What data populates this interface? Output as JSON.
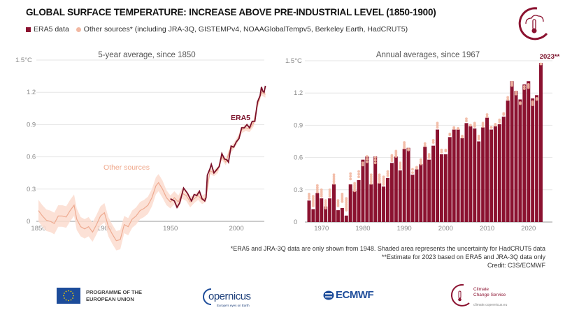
{
  "title": "GLOBAL SURFACE TEMPERATURE: INCREASE ABOVE PRE-INDUSTRIAL LEVEL (1850-1900)",
  "legend": {
    "era5": "ERA5 data",
    "others": "Other sources* (including JRA-3Q, GISTEMPv4, NOAAGlobalTempv5, Berkeley Earth, HadCRUT5)"
  },
  "colors": {
    "era5": "#8b1230",
    "others": "#f2b8a2",
    "band": "#fbdccf"
  },
  "chart_data": [
    {
      "type": "line",
      "title": "5-year average, since 1850",
      "ylim": [
        -0.2,
        1.5
      ],
      "xlim": [
        1847,
        2023
      ],
      "y_ticks": [
        "0",
        "0.3",
        "0.6",
        "0.9",
        "1.2",
        "1.5°C"
      ],
      "y_tick_values": [
        0,
        0.3,
        0.6,
        0.9,
        1.2,
        1.5
      ],
      "x_ticks": [
        "1850",
        "1900",
        "1950",
        "2000"
      ],
      "x_tick_values": [
        1850,
        1900,
        1950,
        2000
      ],
      "grid": true,
      "annotations": {
        "era5": "ERA5",
        "others": "Other sources"
      },
      "series": [
        {
          "name": "ERA5",
          "x": [
            1950,
            1953,
            1955,
            1957,
            1960,
            1963,
            1965,
            1966,
            1968,
            1970,
            1972,
            1974,
            1976,
            1977,
            1978,
            1980,
            1981,
            1983,
            1985,
            1987,
            1989,
            1991,
            1993,
            1994,
            1996,
            1998,
            2000,
            2002,
            2004,
            2006,
            2008,
            2010,
            2012,
            2014,
            2016,
            2018,
            2019,
            2020,
            2021,
            2022
          ],
          "y": [
            0.21,
            0.19,
            0.13,
            0.17,
            0.31,
            0.26,
            0.21,
            0.19,
            0.25,
            0.24,
            0.28,
            0.21,
            0.19,
            0.22,
            0.43,
            0.49,
            0.53,
            0.45,
            0.48,
            0.51,
            0.63,
            0.58,
            0.57,
            0.55,
            0.7,
            0.69,
            0.74,
            0.77,
            0.87,
            0.87,
            0.9,
            0.87,
            0.93,
            0.93,
            1.11,
            1.17,
            1.25,
            1.21,
            1.2,
            1.26
          ]
        },
        {
          "name": "Other sources",
          "x": [
            1850,
            1853,
            1856,
            1859,
            1862,
            1865,
            1868,
            1871,
            1874,
            1877,
            1879,
            1882,
            1885,
            1888,
            1891,
            1894,
            1897,
            1900,
            1903,
            1906,
            1909,
            1912,
            1915,
            1918,
            1921,
            1924,
            1927,
            1930,
            1933,
            1936,
            1939,
            1941,
            1944,
            1947,
            1950,
            1953,
            1956,
            1959,
            1962,
            1965,
            1968,
            1971,
            1974,
            1977,
            1980,
            1983,
            1986,
            1989,
            1992,
            1995,
            1998,
            2001,
            2004,
            2007,
            2010,
            2013,
            2016,
            2019,
            2022
          ],
          "y": [
            0.1,
            0.05,
            0.01,
            0.0,
            -0.02,
            0.05,
            0.05,
            0.04,
            0.1,
            0.15,
            0.02,
            -0.05,
            -0.07,
            -0.05,
            -0.1,
            -0.03,
            0.05,
            0.08,
            -0.05,
            -0.12,
            -0.18,
            -0.17,
            -0.03,
            -0.05,
            0.02,
            0.05,
            0.1,
            0.12,
            0.15,
            0.22,
            0.33,
            0.36,
            0.3,
            0.22,
            0.18,
            0.22,
            0.18,
            0.26,
            0.24,
            0.18,
            0.21,
            0.24,
            0.2,
            0.22,
            0.47,
            0.45,
            0.48,
            0.6,
            0.55,
            0.66,
            0.7,
            0.76,
            0.85,
            0.87,
            0.86,
            0.91,
            1.08,
            1.2,
            1.18
          ],
          "uncertainty": [
            0.1,
            0.1,
            0.1,
            0.1,
            0.1,
            0.1,
            0.1,
            0.1,
            0.1,
            0.1,
            0.1,
            0.09,
            0.09,
            0.09,
            0.09,
            0.09,
            0.09,
            0.09,
            0.09,
            0.09,
            0.09,
            0.09,
            0.08,
            0.08,
            0.08,
            0.08,
            0.08,
            0.08,
            0.08,
            0.08,
            0.08,
            0.08,
            0.08,
            0.07,
            0.06,
            0.06,
            0.06,
            0.05,
            0.05,
            0.05,
            0.04,
            0.04,
            0.04,
            0.04,
            0.03,
            0.03,
            0.03,
            0.03,
            0.03,
            0.03,
            0.03,
            0.03,
            0.03,
            0.03,
            0.03,
            0.03,
            0.03,
            0.03,
            0.03
          ]
        }
      ]
    },
    {
      "type": "bar",
      "title": "Annual averages, since 1967",
      "ylim": [
        0,
        1.5
      ],
      "y_ticks": [
        "0",
        "0.3",
        "0.6",
        "0.9",
        "1.2",
        "1.5°C"
      ],
      "y_tick_values": [
        0,
        0.3,
        0.6,
        0.9,
        1.2,
        1.5
      ],
      "x_ticks": [
        "1970",
        "1980",
        "1990",
        "2000",
        "2010",
        "2020"
      ],
      "x_tick_values": [
        1970,
        1980,
        1990,
        2000,
        2010,
        2020
      ],
      "grid": true,
      "annotation": "2023**",
      "x": [
        1967,
        1968,
        1969,
        1970,
        1971,
        1972,
        1973,
        1974,
        1975,
        1976,
        1977,
        1978,
        1979,
        1980,
        1981,
        1982,
        1983,
        1984,
        1985,
        1986,
        1987,
        1988,
        1989,
        1990,
        1991,
        1992,
        1993,
        1994,
        1995,
        1996,
        1997,
        1998,
        1999,
        2000,
        2001,
        2002,
        2003,
        2004,
        2005,
        2006,
        2007,
        2008,
        2009,
        2010,
        2011,
        2012,
        2013,
        2014,
        2015,
        2016,
        2017,
        2018,
        2019,
        2020,
        2021,
        2022,
        2023
      ],
      "series": [
        {
          "name": "ERA5",
          "values": [
            0.2,
            0.12,
            0.27,
            0.22,
            0.145,
            0.22,
            0.35,
            0.11,
            0.13,
            0.06,
            0.35,
            0.29,
            0.39,
            0.58,
            0.61,
            0.35,
            0.61,
            0.36,
            0.33,
            0.41,
            0.55,
            0.61,
            0.48,
            0.68,
            0.69,
            0.44,
            0.49,
            0.54,
            0.7,
            0.58,
            0.71,
            0.86,
            0.63,
            0.63,
            0.79,
            0.86,
            0.86,
            0.78,
            0.92,
            0.89,
            0.87,
            0.75,
            0.88,
            0.97,
            0.86,
            0.89,
            0.91,
            0.98,
            1.13,
            1.31,
            1.22,
            1.14,
            1.28,
            1.31,
            1.15,
            1.18,
            1.48
          ]
        },
        {
          "name": "Other sources",
          "ranges": [
            [
              0.22,
              0.26
            ],
            [
              0.15,
              0.24
            ],
            [
              0.28,
              0.34
            ],
            [
              0.24,
              0.3
            ],
            [
              0.13,
              0.2
            ],
            [
              0.24,
              0.3
            ],
            [
              0.36,
              0.44
            ],
            [
              0.15,
              0.2
            ],
            [
              0.19,
              0.26
            ],
            [
              0.11,
              0.22
            ],
            [
              0.4,
              0.45
            ],
            [
              0.29,
              0.36
            ],
            [
              0.42,
              0.47
            ],
            [
              0.53,
              0.55
            ],
            [
              0.56,
              0.61
            ],
            [
              0.36,
              0.44
            ],
            [
              0.55,
              0.6
            ],
            [
              0.37,
              0.44
            ],
            [
              0.35,
              0.42
            ],
            [
              0.43,
              0.47
            ],
            [
              0.57,
              0.62
            ],
            [
              0.61,
              0.66
            ],
            [
              0.5,
              0.55
            ],
            [
              0.69,
              0.74
            ],
            [
              0.67,
              0.68
            ],
            [
              0.46,
              0.49
            ],
            [
              0.5,
              0.51
            ],
            [
              0.54,
              0.58
            ],
            [
              0.71,
              0.73
            ],
            [
              0.6,
              0.63
            ],
            [
              0.74,
              0.76
            ],
            [
              0.88,
              0.92
            ],
            [
              0.65,
              0.67
            ],
            [
              0.66,
              0.67
            ],
            [
              0.81,
              0.82
            ],
            [
              0.87,
              0.88
            ],
            [
              0.87,
              0.87
            ],
            [
              0.79,
              0.8
            ],
            [
              0.94,
              0.96
            ],
            [
              0.9,
              0.9
            ],
            [
              0.89,
              0.92
            ],
            [
              0.77,
              0.8
            ],
            [
              0.89,
              0.92
            ],
            [
              0.98,
              1.0
            ],
            [
              0.88,
              0.88
            ],
            [
              0.9,
              0.91
            ],
            [
              0.93,
              0.95
            ],
            [
              1.0,
              1.01
            ],
            [
              1.14,
              1.16
            ],
            [
              1.27,
              1.3
            ],
            [
              1.19,
              1.21
            ],
            [
              1.1,
              1.11
            ],
            [
              1.24,
              1.26
            ],
            [
              1.25,
              1.28
            ],
            [
              1.09,
              1.12
            ],
            [
              1.14,
              1.15
            ],
            [
              1.47,
              1.47
            ]
          ]
        }
      ]
    }
  ],
  "notes": [
    "*ERA5 and JRA-3Q data are only shown from 1948. Shaded area represents the uncertainty for HadCRUT5 data",
    "**Estimate for 2023 based on ERA5 and JRA-3Q data only",
    "Credit: C3S/ECMWF"
  ],
  "footer": {
    "eu": [
      "PROGRAMME OF THE",
      "EUROPEAN UNION"
    ],
    "copernicus": "opernicus",
    "copernicus_tag": "Europe's eyes on Earth",
    "ecmwf": "ECMWF",
    "c3s": [
      "Climate",
      "Change Service"
    ],
    "c3s_url": "climate.copernicus.eu"
  }
}
